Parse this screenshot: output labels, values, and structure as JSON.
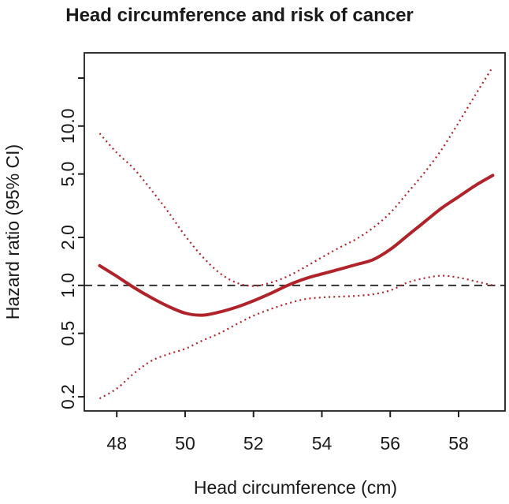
{
  "chart_data": {
    "type": "line",
    "title": "Head circumference and risk of cancer",
    "xlabel": "Head circumference (cm)",
    "ylabel": "Hazard ratio (95% CI)",
    "x_scale": "linear",
    "y_scale": "log10",
    "xlim": [
      47.05,
      59.36
    ],
    "ylim": [
      0.163,
      28.8
    ],
    "grid": "off",
    "legend": "none",
    "x_ticks": [
      48,
      50,
      52,
      54,
      56,
      58
    ],
    "x_tick_labels": [
      "48",
      "50",
      "52",
      "54",
      "56",
      "58"
    ],
    "y_ticks": [
      0.2,
      0.5,
      1.0,
      2.0,
      5.0,
      10.0
    ],
    "y_tick_labels": [
      "0.2",
      "0.5",
      "1.0",
      "2.0",
      "5.0",
      "10.0"
    ],
    "y_unlabeled_ticks": [
      20
    ],
    "reference_line": {
      "y": 1.0,
      "style": "dashed",
      "color": "#333333"
    },
    "x": [
      47.5,
      48,
      48.5,
      49,
      49.5,
      50,
      50.5,
      51,
      51.5,
      52,
      52.5,
      53,
      53.5,
      54,
      54.5,
      55,
      55.5,
      56,
      56.5,
      57,
      57.5,
      58,
      58.5,
      59
    ],
    "series": [
      {
        "name": "Hazard ratio estimate",
        "style": "solid",
        "color": "#b0232a",
        "values": [
          1.33,
          1.14,
          0.97,
          0.84,
          0.74,
          0.67,
          0.65,
          0.68,
          0.73,
          0.8,
          0.89,
          1.0,
          1.1,
          1.18,
          1.26,
          1.35,
          1.45,
          1.68,
          2.05,
          2.5,
          3.05,
          3.6,
          4.25,
          4.9
        ]
      },
      {
        "name": "Upper 95% confidence limit",
        "style": "dotted",
        "color": "#b0232a",
        "values": [
          9.0,
          6.8,
          5.4,
          4.0,
          2.9,
          2.05,
          1.52,
          1.2,
          1.04,
          0.99,
          1.04,
          1.14,
          1.3,
          1.5,
          1.72,
          1.95,
          2.3,
          2.85,
          3.8,
          5.1,
          7.1,
          10.5,
          15.8,
          23.5
        ]
      },
      {
        "name": "Lower 95% confidence limit",
        "style": "dotted",
        "color": "#b0232a",
        "values": [
          0.195,
          0.225,
          0.28,
          0.335,
          0.37,
          0.4,
          0.45,
          0.5,
          0.57,
          0.645,
          0.71,
          0.77,
          0.82,
          0.84,
          0.85,
          0.86,
          0.88,
          0.93,
          1.04,
          1.11,
          1.15,
          1.12,
          1.06,
          1.0
        ]
      }
    ]
  }
}
